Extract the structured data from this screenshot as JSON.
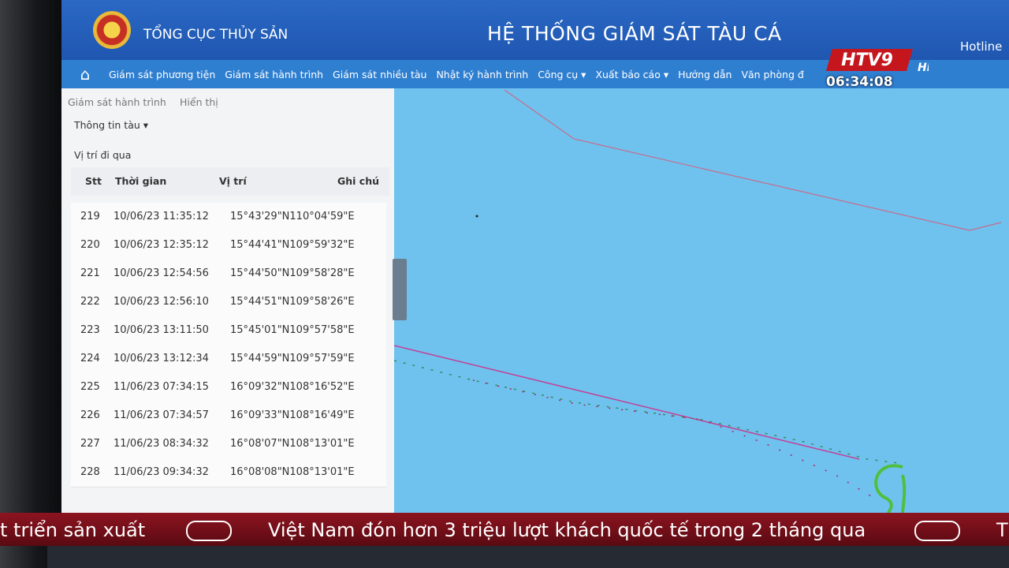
{
  "header": {
    "org": "TỔNG CỤC THỦY SẢN",
    "title": "HỆ THỐNG GIÁM SÁT TÀU CÁ",
    "hotline": "Hotline"
  },
  "nav": [
    "Giám sát phương tiện",
    "Giám sát hành trình",
    "Giám sát nhiều tàu",
    "Nhật ký hành trình",
    "Công cụ ▾",
    "Xuất báo cáo ▾",
    "Hướng dẫn",
    "Văn phòng đ"
  ],
  "panel": {
    "breadcrumb": "Giám sát hành trình",
    "display": "Hiển thị",
    "info": "Thông tin tàu ▾",
    "section": "Vị trí đi qua",
    "columns": [
      "Stt",
      "Thời gian",
      "Vị trí",
      "Ghi chú"
    ],
    "rows": [
      [
        219,
        "10/06/23 11:35:12",
        "15°43'29\"N110°04'59\"E"
      ],
      [
        220,
        "10/06/23 12:35:12",
        "15°44'41\"N109°59'32\"E"
      ],
      [
        221,
        "10/06/23 12:54:56",
        "15°44'50\"N109°58'28\"E"
      ],
      [
        222,
        "10/06/23 12:56:10",
        "15°44'51\"N109°58'26\"E"
      ],
      [
        223,
        "10/06/23 13:11:50",
        "15°45'01\"N109°57'58\"E"
      ],
      [
        224,
        "10/06/23 13:12:34",
        "15°44'59\"N109°57'59\"E"
      ],
      [
        225,
        "11/06/23 07:34:15",
        "16°09'32\"N108°16'52\"E"
      ],
      [
        226,
        "11/06/23 07:34:57",
        "16°09'33\"N108°16'49\"E"
      ],
      [
        227,
        "11/06/23 08:34:32",
        "16°08'07\"N108°13'01\"E"
      ],
      [
        228,
        "11/06/23 09:34:32",
        "16°08'08\"N108°13'01\"E"
      ]
    ]
  },
  "overlay": {
    "channel": "HTV9",
    "hd": "HD",
    "clock": "06:34:08"
  },
  "ticker": [
    "t triển sản xuất",
    "Việt Nam đón hơn 3 triệu lượt khách quốc tế trong 2 tháng qua",
    "T"
  ]
}
